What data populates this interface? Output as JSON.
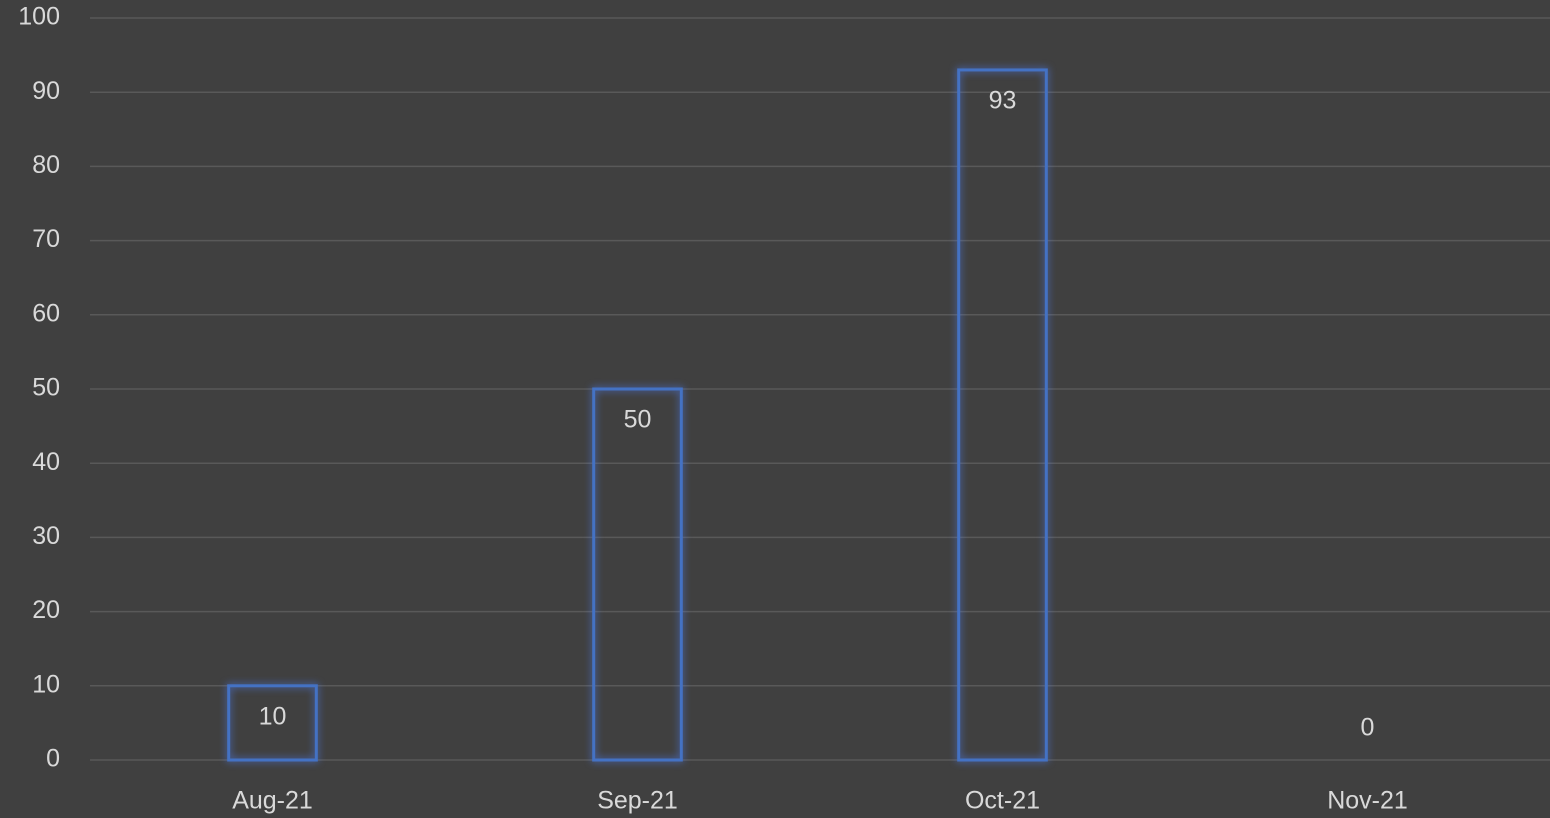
{
  "chart_data": {
    "type": "bar",
    "categories": [
      "Aug-21",
      "Sep-21",
      "Oct-21",
      "Nov-21"
    ],
    "values": [
      10,
      50,
      93,
      0
    ],
    "color": "#4472c4",
    "ylim": [
      0,
      100
    ],
    "yticks": [
      0,
      10,
      20,
      30,
      40,
      50,
      60,
      70,
      80,
      90,
      100
    ],
    "grid": true
  }
}
